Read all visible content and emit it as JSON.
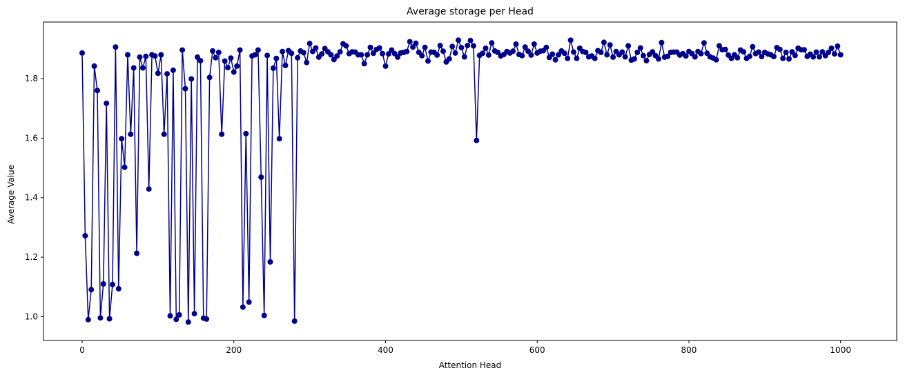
{
  "chart_data": {
    "type": "line",
    "title": "Average storage per Head",
    "xlabel": "Attention Head",
    "ylabel": "Average Value",
    "xlim": [
      -51,
      1074
    ],
    "ylim": [
      0.92,
      1.99
    ],
    "x_ticks": [
      0,
      200,
      400,
      600,
      800,
      1000
    ],
    "y_ticks": [
      1.0,
      1.2,
      1.4,
      1.6,
      1.8
    ],
    "x_tick_labels": [
      "0",
      "200",
      "400",
      "600",
      "800",
      "1000"
    ],
    "y_tick_labels": [
      "1.0",
      "1.2",
      "1.4",
      "1.6",
      "1.8"
    ],
    "grid": false,
    "legend": "none",
    "marker": "circle",
    "color": "#00008b",
    "series": [
      {
        "x_start": 0,
        "x_step": 4,
        "values": [
          1.886,
          1.272,
          0.99,
          1.091,
          1.842,
          1.76,
          0.996,
          1.11,
          1.717,
          0.993,
          1.108,
          1.906,
          1.094,
          1.598,
          1.502,
          1.88,
          1.613,
          1.836,
          1.213,
          1.872,
          1.836,
          1.875,
          1.429,
          1.88,
          1.876,
          1.818,
          1.88,
          1.613,
          1.816,
          1.003,
          1.828,
          0.991,
          1.006,
          1.896,
          1.766,
          0.982,
          1.799,
          1.01,
          1.872,
          1.86,
          0.995,
          0.992,
          1.804,
          1.893,
          1.87,
          1.888,
          1.613,
          1.859,
          1.837,
          1.869,
          1.822,
          1.842,
          1.896,
          1.032,
          1.615,
          1.049,
          1.876,
          1.88,
          1.896,
          1.469,
          1.004,
          1.878,
          1.184,
          1.835,
          1.868,
          1.598,
          1.891,
          1.844,
          1.894,
          1.885,
          0.985,
          1.87,
          1.893,
          1.887,
          1.854,
          1.918,
          1.891,
          1.903,
          1.872,
          1.883,
          1.901,
          1.89,
          1.88,
          1.864,
          1.876,
          1.89,
          1.917,
          1.91,
          1.884,
          1.89,
          1.889,
          1.88,
          1.88,
          1.85,
          1.88,
          1.905,
          1.885,
          1.898,
          1.903,
          1.884,
          1.842,
          1.883,
          1.896,
          1.884,
          1.872,
          1.886,
          1.888,
          1.891,
          1.924,
          1.906,
          1.919,
          1.888,
          1.877,
          1.905,
          1.859,
          1.889,
          1.888,
          1.879,
          1.911,
          1.892,
          1.856,
          1.866,
          1.908,
          1.886,
          1.929,
          1.904,
          1.873,
          1.911,
          1.928,
          1.91,
          1.592,
          1.878,
          1.885,
          1.902,
          1.879,
          1.92,
          1.893,
          1.888,
          1.876,
          1.881,
          1.891,
          1.886,
          1.892,
          1.916,
          1.881,
          1.877,
          1.906,
          1.892,
          1.879,
          1.916,
          1.886,
          1.892,
          1.894,
          1.905,
          1.871,
          1.882,
          1.863,
          1.88,
          1.893,
          1.885,
          1.868,
          1.929,
          1.889,
          1.868,
          1.902,
          1.891,
          1.888,
          1.873,
          1.876,
          1.868,
          1.894,
          1.888,
          1.922,
          1.88,
          1.913,
          1.872,
          1.891,
          1.88,
          1.889,
          1.873,
          1.91,
          1.862,
          1.866,
          1.888,
          1.903,
          1.877,
          1.86,
          1.881,
          1.89,
          1.877,
          1.866,
          1.921,
          1.872,
          1.875,
          1.888,
          1.889,
          1.889,
          1.879,
          1.884,
          1.876,
          1.891,
          1.884,
          1.873,
          1.891,
          1.884,
          1.92,
          1.885,
          1.873,
          1.869,
          1.863,
          1.91,
          1.897,
          1.898,
          1.879,
          1.868,
          1.88,
          1.87,
          1.896,
          1.89,
          1.868,
          1.875,
          1.907,
          1.884,
          1.889,
          1.874,
          1.888,
          1.883,
          1.88,
          1.874,
          1.904,
          1.898,
          1.868,
          1.888,
          1.866,
          1.89,
          1.878,
          1.902,
          1.897,
          1.897,
          1.875,
          1.882,
          1.873,
          1.889,
          1.873,
          1.89,
          1.877,
          1.888,
          1.902,
          1.883,
          1.909,
          1.88
        ]
      }
    ]
  }
}
